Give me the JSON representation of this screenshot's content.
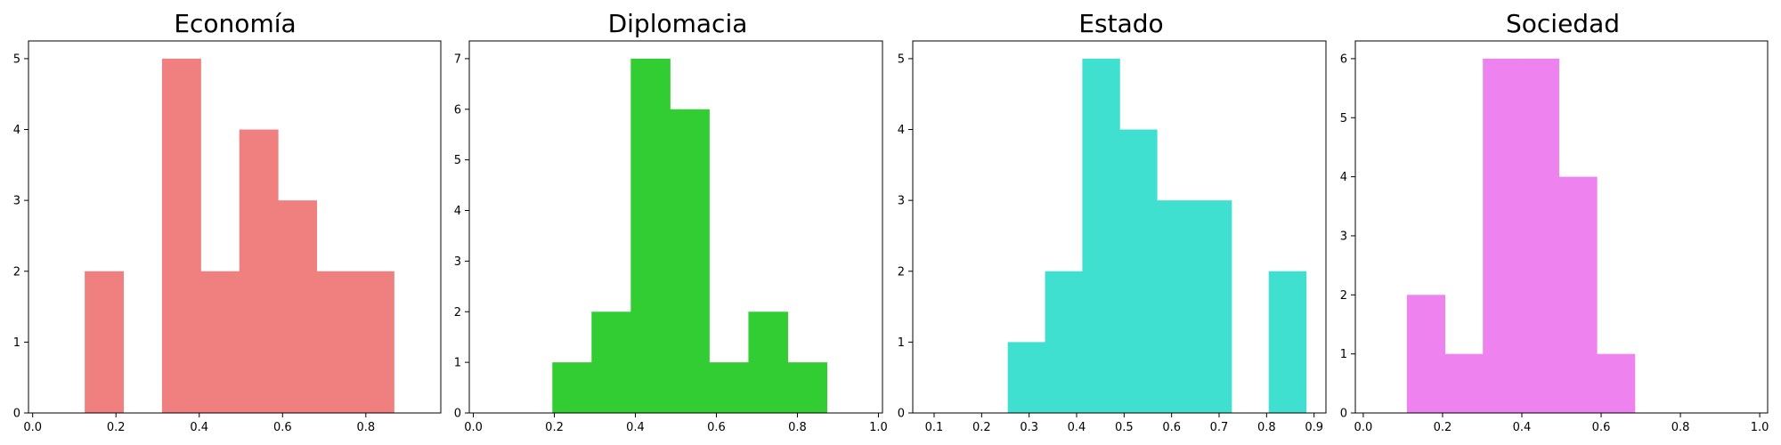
{
  "chart_data": [
    {
      "type": "bar",
      "title": "Economía",
      "color": "#f08080",
      "xlim": [
        -0.01,
        0.98
      ],
      "ylim": [
        0,
        5.25
      ],
      "xticks": [
        "0.0",
        "0.2",
        "0.4",
        "0.6",
        "0.8"
      ],
      "xtick_values": [
        0,
        0.2,
        0.4,
        0.6,
        0.8
      ],
      "yticks": [
        "0",
        "1",
        "2",
        "3",
        "4",
        "5"
      ],
      "ytick_values": [
        0,
        1,
        2,
        3,
        4,
        5
      ],
      "bins": [
        0.125,
        0.2178,
        0.3106,
        0.4034,
        0.4962,
        0.589,
        0.6818,
        0.7746,
        0.8674
      ],
      "counts": [
        2,
        0,
        5,
        2,
        4,
        3,
        2,
        2
      ]
    },
    {
      "type": "bar",
      "title": "Diplomacia",
      "color": "#32cd32",
      "xlim": [
        -0.01,
        1.01
      ],
      "ylim": [
        0,
        7.35
      ],
      "xticks": [
        "0.0",
        "0.2",
        "0.4",
        "0.6",
        "0.8",
        "1.0"
      ],
      "xtick_values": [
        0,
        0.2,
        0.4,
        0.6,
        0.8,
        1.0
      ],
      "yticks": [
        "0",
        "1",
        "2",
        "3",
        "4",
        "5",
        "6",
        "7"
      ],
      "ytick_values": [
        0,
        1,
        2,
        3,
        4,
        5,
        6,
        7
      ],
      "bins": [
        0.195,
        0.2918,
        0.3886,
        0.4854,
        0.5822,
        0.679,
        0.7758,
        0.8726
      ],
      "counts": [
        1,
        2,
        7,
        6,
        1,
        2,
        1
      ]
    },
    {
      "type": "bar",
      "title": "Estado",
      "color": "#40e0d0",
      "xlim": [
        0.055,
        0.925
      ],
      "ylim": [
        0,
        5.25
      ],
      "xticks": [
        "0.1",
        "0.2",
        "0.3",
        "0.4",
        "0.5",
        "0.6",
        "0.7",
        "0.8",
        "0.9"
      ],
      "xtick_values": [
        0.1,
        0.2,
        0.3,
        0.4,
        0.5,
        0.6,
        0.7,
        0.8,
        0.9
      ],
      "yticks": [
        "0",
        "1",
        "2",
        "3",
        "4",
        "5"
      ],
      "ytick_values": [
        0,
        1,
        2,
        3,
        4,
        5
      ],
      "bins": [
        0.255,
        0.3335,
        0.412,
        0.4905,
        0.569,
        0.6475,
        0.726,
        0.8045,
        0.883
      ],
      "counts": [
        1,
        2,
        5,
        4,
        3,
        3,
        0,
        2
      ]
    },
    {
      "type": "bar",
      "title": "Sociedad",
      "color": "#ee82ee",
      "xlim": [
        -0.02,
        1.02
      ],
      "ylim": [
        0,
        6.3
      ],
      "xticks": [
        "0.0",
        "0.2",
        "0.4",
        "0.6",
        "0.8",
        "1.0"
      ],
      "xtick_values": [
        0,
        0.2,
        0.4,
        0.6,
        0.8,
        1.0
      ],
      "yticks": [
        "0",
        "1",
        "2",
        "3",
        "4",
        "5",
        "6"
      ],
      "ytick_values": [
        0,
        1,
        2,
        3,
        4,
        5,
        6
      ],
      "bins": [
        0.11,
        0.2058,
        0.3016,
        0.3974,
        0.4932,
        0.589,
        0.6848
      ],
      "counts": [
        2,
        1,
        6,
        6,
        4,
        1
      ]
    }
  ]
}
